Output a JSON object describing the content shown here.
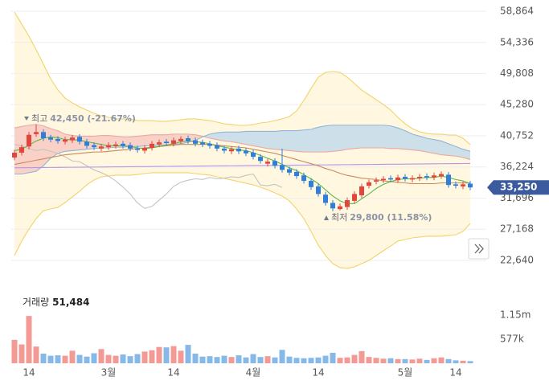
{
  "chart_data": {
    "type": "candlestick",
    "categories": [
      null,
      null,
      "14",
      null,
      null,
      null,
      null,
      null,
      null,
      null,
      null,
      null,
      null,
      "3월",
      null,
      null,
      null,
      null,
      null,
      null,
      null,
      null,
      "14",
      null,
      null,
      null,
      null,
      null,
      null,
      null,
      null,
      null,
      null,
      "4월",
      null,
      null,
      null,
      null,
      null,
      null,
      null,
      null,
      "14",
      null,
      null,
      null,
      null,
      null,
      null,
      null,
      null,
      null,
      null,
      null,
      "5월",
      null,
      null,
      null,
      null,
      null,
      null,
      "14",
      null,
      null
    ],
    "open": [
      37600,
      38300,
      39200,
      41000,
      41300,
      40500,
      40300,
      39900,
      40100,
      40600,
      39900,
      39400,
      38900,
      39100,
      39300,
      39600,
      39400,
      38900,
      38600,
      39000,
      39500,
      39900,
      39600,
      40000,
      40400,
      40100,
      39800,
      39600,
      39400,
      38900,
      38500,
      38900,
      38600,
      38300,
      37700,
      36700,
      37100,
      36500,
      35900,
      35500,
      35000,
      34200,
      33400,
      32200,
      31000,
      30100,
      30400,
      31300,
      32100,
      33500,
      34100,
      34300,
      34600,
      34300,
      34800,
      34400,
      34600,
      34900,
      34700,
      34900,
      35100,
      33700,
      33400,
      33800
    ],
    "high": [
      38700,
      39500,
      41300,
      42450,
      41700,
      40900,
      40700,
      40600,
      40900,
      41000,
      40300,
      39800,
      39600,
      39800,
      39900,
      40000,
      39800,
      39300,
      39400,
      40000,
      40200,
      40300,
      40500,
      40700,
      40800,
      40500,
      40200,
      40000,
      39800,
      39300,
      39200,
      39300,
      39000,
      38700,
      38100,
      37400,
      37500,
      38900,
      36300,
      35900,
      35400,
      34600,
      33800,
      32600,
      31400,
      30900,
      31800,
      32700,
      33800,
      34400,
      34700,
      34900,
      35000,
      35100,
      35200,
      35000,
      35200,
      35300,
      35400,
      35600,
      35500,
      34100,
      34100,
      34200
    ],
    "low": [
      37200,
      37900,
      38800,
      40600,
      40000,
      39800,
      39600,
      39500,
      39700,
      39500,
      38900,
      38700,
      38500,
      38700,
      38900,
      38900,
      38500,
      38300,
      38200,
      38600,
      39100,
      39300,
      39200,
      39600,
      39600,
      39200,
      39100,
      38900,
      38500,
      38200,
      38100,
      38100,
      37800,
      37300,
      36700,
      36300,
      36000,
      35400,
      35000,
      34500,
      33800,
      32900,
      31900,
      30600,
      29800,
      29900,
      30000,
      30900,
      31700,
      33100,
      33700,
      33900,
      34000,
      33900,
      34100,
      34000,
      34200,
      34300,
      34300,
      34500,
      33200,
      33100,
      33000,
      32850
    ],
    "close": [
      38300,
      39100,
      40900,
      41300,
      40400,
      40200,
      40000,
      40200,
      40500,
      39900,
      39300,
      39100,
      39200,
      39400,
      39500,
      39300,
      38900,
      38700,
      39000,
      39600,
      39800,
      39700,
      40100,
      40300,
      40000,
      39600,
      39500,
      39300,
      38900,
      38600,
      38800,
      38500,
      38200,
      37700,
      37100,
      37000,
      36400,
      35800,
      35400,
      34900,
      34200,
      33300,
      32300,
      31000,
      30200,
      30500,
      31400,
      32300,
      33400,
      34000,
      34300,
      34500,
      34400,
      34700,
      34500,
      34600,
      34800,
      34700,
      35000,
      35200,
      33600,
      33500,
      33700,
      33250
    ],
    "up_color": "#e0463c",
    "down_color": "#2f7ed8",
    "ylim": [
      20770,
      60500
    ],
    "yticks": [
      {
        "value": 58864,
        "label": "58,864"
      },
      {
        "value": 54336,
        "label": "54,336"
      },
      {
        "value": 49808,
        "label": "49,808"
      },
      {
        "value": 45280,
        "label": "45,280"
      },
      {
        "value": 40752,
        "label": "40,752"
      },
      {
        "value": 36224,
        "label": "36,224"
      },
      {
        "value": 31696,
        "label": "31,696"
      },
      {
        "value": 27168,
        "label": "27,168"
      },
      {
        "value": 22640,
        "label": "22,640"
      }
    ],
    "grid": true,
    "band_fill": "#fff7e0",
    "cloud_up_color": "#f7c4bd",
    "cloud_down_color": "#bcd7ec",
    "lines": {
      "bollinger_upper": {
        "color": "#f2d36a",
        "values": [
          58750,
          57000,
          55240,
          53260,
          51150,
          49050,
          47410,
          46240,
          45540,
          44960,
          44490,
          44020,
          43670,
          43440,
          43210,
          43210,
          43210,
          42970,
          42970,
          42970,
          42860,
          42860,
          42970,
          43090,
          43210,
          43210,
          43090,
          42970,
          42740,
          42510,
          42390,
          42270,
          42270,
          42390,
          42620,
          42740,
          42970,
          43210,
          43560,
          44370,
          45890,
          47650,
          49280,
          49980,
          50100,
          49980,
          49280,
          48350,
          47410,
          46710,
          46010,
          45310,
          44490,
          43440,
          42510,
          41800,
          41340,
          41100,
          40990,
          40990,
          40870,
          40870,
          40400,
          39470
        ]
      },
      "bollinger_lower": {
        "color": "#f2d36a",
        "values": [
          23340,
          25450,
          27200,
          28720,
          29880,
          30120,
          30350,
          31050,
          31870,
          32690,
          33630,
          34330,
          34790,
          34910,
          35030,
          35030,
          35030,
          35140,
          35260,
          35380,
          35380,
          35380,
          35380,
          35380,
          35380,
          35260,
          35140,
          35030,
          34790,
          34560,
          34330,
          34090,
          33860,
          33630,
          33270,
          32920,
          32460,
          31990,
          31290,
          30120,
          28720,
          26850,
          24860,
          23340,
          22170,
          21590,
          21470,
          21710,
          22170,
          22640,
          23340,
          24040,
          24740,
          25450,
          25680,
          25910,
          26030,
          26150,
          26150,
          26150,
          26260,
          26380,
          26850,
          28020
        ]
      },
      "span_a": {
        "color": "#e9a9a1",
        "values": [
          41900,
          42100,
          42300,
          42400,
          42200,
          41800,
          41500,
          41000,
          40800,
          40700,
          40700,
          40700,
          40800,
          40800,
          40700,
          40600,
          40600,
          40700,
          40800,
          40900,
          40900,
          40900,
          41000,
          41000,
          41000,
          40900,
          40700,
          40400,
          40200,
          40000,
          39900,
          39700,
          39500,
          39300,
          39100,
          38900,
          38800,
          38700,
          38600,
          38500,
          38400,
          38400,
          38400,
          38400,
          38500,
          38600,
          38800,
          38900,
          39000,
          39000,
          39000,
          39000,
          38900,
          38900,
          38800,
          38700,
          38600,
          38400,
          38200,
          38000,
          37900,
          37800,
          37600,
          37300
        ]
      },
      "span_b": {
        "color": "#8fb6d8",
        "values": [
          35200,
          35200,
          35400,
          35600,
          36400,
          37500,
          38200,
          38500,
          38600,
          38700,
          38800,
          38900,
          39000,
          39000,
          39100,
          39100,
          39200,
          39200,
          39300,
          39300,
          39400,
          39400,
          39500,
          39600,
          39800,
          40100,
          40600,
          41000,
          41200,
          41300,
          41300,
          41300,
          41400,
          41400,
          41400,
          41400,
          41400,
          41500,
          41500,
          41500,
          41600,
          41700,
          42000,
          42200,
          42300,
          42300,
          42300,
          42300,
          42300,
          42300,
          42300,
          42300,
          42200,
          41900,
          41500,
          41000,
          40700,
          40400,
          40200,
          40000,
          39600,
          39200,
          38800,
          38500
        ]
      },
      "lagging": {
        "color": "#c4c4c4",
        "values": [
          39500,
          39300,
          38900,
          38600,
          38800,
          38500,
          38200,
          37700,
          37100,
          37000,
          36400,
          35800,
          35400,
          34900,
          34200,
          33300,
          32300,
          31000,
          30200,
          30500,
          31400,
          32300,
          33400,
          34000,
          34300,
          34500,
          34400,
          34700,
          34500,
          34600,
          34800,
          34700,
          35000,
          35200,
          33600,
          33500,
          33700,
          33250,
          null,
          null,
          null,
          null,
          null,
          null,
          null,
          null,
          null,
          null,
          null,
          null,
          null,
          null,
          null,
          null,
          null,
          null,
          null,
          null,
          null,
          null,
          null,
          null,
          null,
          null
        ]
      },
      "ma_long": {
        "color": "#b993e6",
        "values": [
          36100,
          36110,
          36120,
          36130,
          36140,
          36150,
          36160,
          36170,
          36180,
          36190,
          36200,
          36210,
          36220,
          36230,
          36240,
          36250,
          36260,
          36270,
          36280,
          36290,
          36300,
          36310,
          36320,
          36330,
          36340,
          36350,
          36360,
          36370,
          36380,
          36390,
          36400,
          36410,
          36420,
          36430,
          36440,
          36450,
          36460,
          36470,
          36480,
          36490,
          36500,
          36510,
          36520,
          36530,
          36540,
          36550,
          36560,
          36570,
          36580,
          36590,
          36600,
          36610,
          36620,
          36630,
          36640,
          36650,
          36660,
          36670,
          36680,
          36690,
          36700,
          36710,
          36720,
          36730
        ]
      },
      "ma_mid": {
        "color": "#c98a5c",
        "values": [
          36600,
          36800,
          37000,
          37200,
          37400,
          37600,
          37800,
          38000,
          38100,
          38200,
          38300,
          38400,
          38400,
          38500,
          38600,
          38700,
          38800,
          38900,
          39000,
          39100,
          39200,
          39300,
          39400,
          39500,
          39500,
          39500,
          39500,
          39500,
          39400,
          39300,
          39200,
          39100,
          39000,
          38800,
          38600,
          38400,
          38200,
          37900,
          37600,
          37300,
          37000,
          36700,
          36400,
          36000,
          35700,
          35300,
          35000,
          34800,
          34600,
          34500,
          34400,
          34200,
          34100,
          34000,
          33900,
          33800,
          33800,
          33800,
          33800,
          33900,
          33900,
          33900,
          33900,
          33900
        ]
      },
      "ma_short": {
        "color": "#5cb94a",
        "values": [
          38600,
          38800,
          39400,
          40000,
          40400,
          40600,
          40500,
          40200,
          40200,
          40100,
          39900,
          39700,
          39500,
          39300,
          39300,
          39300,
          39200,
          39000,
          38900,
          39000,
          39200,
          39400,
          39600,
          39900,
          40000,
          39900,
          39800,
          39600,
          39300,
          39100,
          38900,
          38700,
          38600,
          38300,
          37900,
          37500,
          37100,
          36600,
          36100,
          35700,
          35100,
          34500,
          33800,
          32900,
          32000,
          31300,
          30900,
          30900,
          31600,
          32300,
          33100,
          33700,
          34100,
          34400,
          34500,
          34500,
          34600,
          34700,
          34700,
          34900,
          34700,
          34400,
          34200,
          33800
        ]
      }
    },
    "annotations": [
      {
        "label": "최고",
        "text": "42,450 (-21.67%)"
      },
      {
        "label": "최저",
        "text": "29,800 (11.58%)"
      }
    ],
    "current_price": {
      "value": 33250,
      "label": "33,250",
      "color": "#3c5b9e"
    },
    "volume": {
      "title": "거래량",
      "value_label": "51,484",
      "values": [
        560000,
        450000,
        1130000,
        400000,
        230000,
        180000,
        190000,
        180000,
        300000,
        200000,
        160000,
        240000,
        340000,
        200000,
        180000,
        210000,
        170000,
        220000,
        280000,
        310000,
        390000,
        380000,
        410000,
        300000,
        440000,
        230000,
        160000,
        170000,
        150000,
        180000,
        150000,
        190000,
        140000,
        220000,
        150000,
        170000,
        140000,
        320000,
        160000,
        130000,
        120000,
        130000,
        140000,
        180000,
        250000,
        130000,
        140000,
        200000,
        290000,
        150000,
        130000,
        110000,
        120000,
        100000,
        100000,
        90000,
        110000,
        80000,
        120000,
        140000,
        100000,
        70000,
        60000,
        51484
      ],
      "ylim": [
        0,
        1670000
      ],
      "yticks": [
        {
          "value": 1150000,
          "label": "1.15m"
        },
        {
          "value": 577000,
          "label": "577k"
        }
      ],
      "up_color": "#f29a93",
      "down_color": "#86b8e8"
    }
  }
}
